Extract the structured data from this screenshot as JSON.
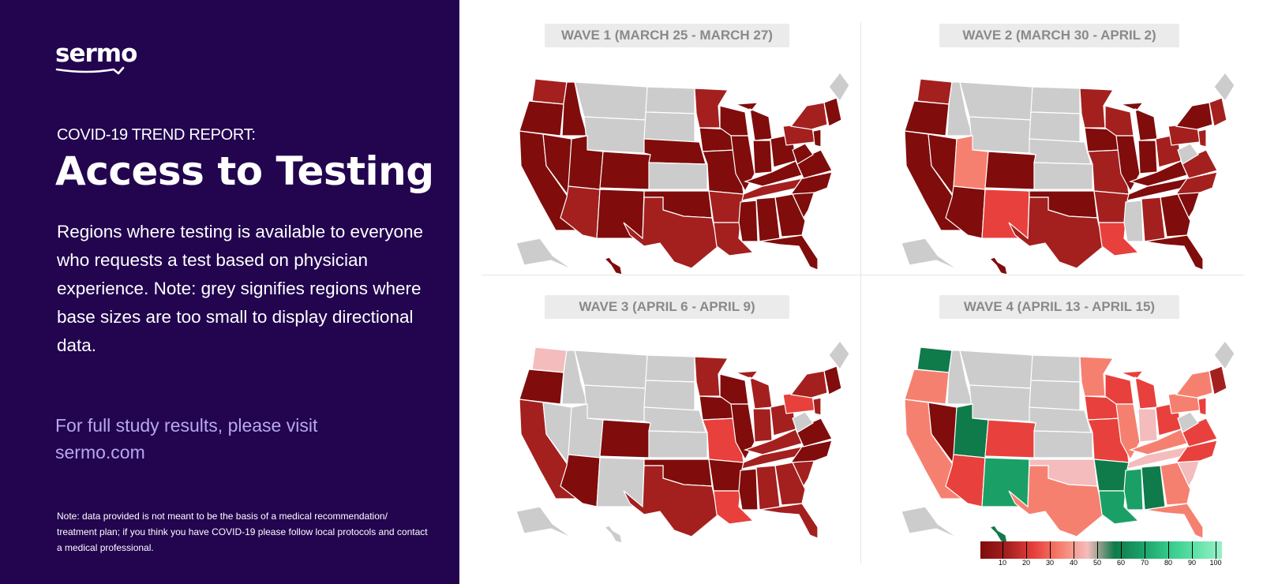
{
  "brand": {
    "logo_text": "sermo"
  },
  "report": {
    "subtitle": "COVID-19 TREND REPORT:",
    "title": "Access to Testing",
    "description": "Regions where testing is available to everyone who requests a test based on physician experience. Note: grey signifies regions where base sizes are too small to display directional data.",
    "visit": "For full study results, please visit sermo.com",
    "disclaimer": "Note: data provided is not meant to be the basis of a medical recommendation/ treatment plan; if you think you have COVID-19 please follow local protocols and contact a medical professional."
  },
  "colors": {
    "panel_bg": "#22044f",
    "no_data": "#cccccc",
    "scale": {
      "10": "#800c0c",
      "20": "#a3201f",
      "30": "#e8403c",
      "40": "#f68070",
      "50": "#f4bcbc",
      "60": "#0f7a4a",
      "70": "#1aa067",
      "80": "#34c98a",
      "90": "#5ee2a7",
      "100": "#9af0c9"
    }
  },
  "waves": [
    {
      "label": "WAVE 1 (MARCH 25 - MARCH 27)",
      "regions": {
        "WA": "20",
        "OR": "10",
        "CA": "10",
        "NV": "10",
        "ID": "10",
        "MT": "grey",
        "WY": "grey",
        "UT": "10",
        "AZ": "20",
        "CO": "10",
        "NM": "10",
        "ND": "grey",
        "SD": "grey",
        "NE": "10",
        "KS": "grey",
        "OK": "10",
        "TX": "20",
        "MN": "20",
        "IA": "10",
        "MO": "10",
        "AR": "20",
        "LA": "20",
        "WI": "10",
        "IL": "10",
        "MI": "10",
        "IN": "10",
        "OH": "10",
        "KY": "10",
        "TN": "20",
        "MS": "10",
        "AL": "10",
        "GA": "10",
        "FL": "10",
        "SC": "10",
        "NC": "10",
        "VA": "10",
        "WV": "10",
        "PA": "20",
        "NY": "20",
        "NJ": "10",
        "NE_US": "10",
        "ME": "grey",
        "AK": "grey",
        "HI": "10"
      }
    },
    {
      "label": "WAVE 2 (MARCH 30 - APRIL 2)",
      "regions": {
        "WA": "20",
        "OR": "10",
        "CA": "10",
        "NV": "10",
        "ID": "grey",
        "MT": "grey",
        "WY": "grey",
        "UT": "40",
        "AZ": "10",
        "CO": "10",
        "NM": "30",
        "ND": "grey",
        "SD": "grey",
        "NE": "grey",
        "KS": "grey",
        "OK": "10",
        "TX": "20",
        "MN": "20",
        "IA": "10",
        "MO": "20",
        "AR": "20",
        "LA": "30",
        "WI": "20",
        "IL": "10",
        "MI": "10",
        "IN": "10",
        "OH": "20",
        "KY": "10",
        "TN": "10",
        "MS": "grey",
        "AL": "20",
        "GA": "10",
        "FL": "10",
        "SC": "10",
        "NC": "20",
        "VA": "20",
        "WV": "grey",
        "PA": "20",
        "NY": "10",
        "NJ": "20",
        "NE_US": "20",
        "ME": "grey",
        "AK": "grey",
        "HI": "10"
      }
    },
    {
      "label": "WAVE 3 (APRIL 6 - APRIL 9)",
      "regions": {
        "WA": "50",
        "OR": "10",
        "CA": "20",
        "NV": "grey",
        "ID": "grey",
        "MT": "grey",
        "WY": "grey",
        "UT": "grey",
        "AZ": "10",
        "CO": "10",
        "NM": "grey",
        "ND": "grey",
        "SD": "grey",
        "NE": "grey",
        "KS": "grey",
        "OK": "10",
        "TX": "20",
        "MN": "20",
        "IA": "10",
        "MO": "30",
        "AR": "10",
        "LA": "30",
        "WI": "10",
        "IL": "10",
        "MI": "20",
        "IN": "20",
        "OH": "20",
        "KY": "20",
        "TN": "20",
        "MS": "10",
        "AL": "20",
        "GA": "20",
        "FL": "20",
        "SC": "20",
        "NC": "10",
        "VA": "10",
        "WV": "grey",
        "PA": "30",
        "NY": "20",
        "NJ": "20",
        "NE_US": "10",
        "ME": "grey",
        "AK": "grey",
        "HI": "grey"
      }
    },
    {
      "label": "WAVE 4 (APRIL 13 - APRIL 15)",
      "regions": {
        "WA": "60",
        "OR": "40",
        "CA": "40",
        "NV": "10",
        "ID": "grey",
        "MT": "grey",
        "WY": "grey",
        "UT": "60",
        "AZ": "30",
        "CO": "30",
        "NM": "70",
        "ND": "grey",
        "SD": "grey",
        "NE": "grey",
        "KS": "grey",
        "OK": "50",
        "TX": "40",
        "MN": "40",
        "IA": "30",
        "MO": "30",
        "AR": "60",
        "LA": "70",
        "WI": "30",
        "IL": "40",
        "MI": "30",
        "IN": "50",
        "OH": "30",
        "KY": "40",
        "TN": "50",
        "MS": "70",
        "AL": "60",
        "GA": "40",
        "FL": "40",
        "SC": "50",
        "NC": "30",
        "VA": "30",
        "WV": "grey",
        "PA": "40",
        "NY": "40",
        "NJ": "30",
        "NE_US": "20",
        "ME": "grey",
        "AK": "grey",
        "HI": "60"
      }
    }
  ],
  "legend": {
    "ticks": [
      "10",
      "20",
      "30",
      "40",
      "50",
      "60",
      "70",
      "80",
      "90",
      "100"
    ],
    "colors": [
      "#800c0c",
      "#a3201f",
      "#e8403c",
      "#f68070",
      "#f4bcbc",
      "#0f7a4a",
      "#1aa067",
      "#34c98a",
      "#5ee2a7",
      "#9af0c9"
    ]
  }
}
